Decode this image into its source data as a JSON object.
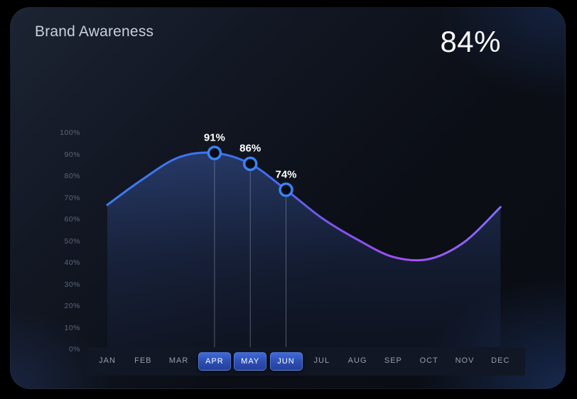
{
  "header": {
    "title": "Brand Awareness",
    "kpi_value": "84%"
  },
  "colors": {
    "line_blue": "#3f7bf4",
    "line_purple": "#a34ff5",
    "line_end_violet": "#7f70f7",
    "marker_ring": "#3b82f6",
    "marker_fill": "#080c14",
    "selected_button_blue": "#2d4db0",
    "area_fill_blue": "#4a74d8",
    "label_white": "#ffffff",
    "axis_gray": "#5c6678",
    "month_gray": "#96a0b0"
  },
  "chart_data": {
    "type": "area",
    "title": "Brand Awareness",
    "xlabel": "",
    "ylabel": "",
    "unit": "%",
    "ylim": [
      0,
      100
    ],
    "grid": false,
    "legend": "none",
    "x": [
      "JAN",
      "FEB",
      "MAR",
      "APR",
      "MAY",
      "JUN",
      "JUL",
      "AUG",
      "SEP",
      "OCT",
      "NOV",
      "DEC"
    ],
    "values": [
      67,
      79,
      89,
      91,
      86,
      74,
      61,
      51,
      43,
      42,
      50,
      66
    ],
    "y_ticks": [
      "100%",
      "90%",
      "80%",
      "70%",
      "60%",
      "50%",
      "40%",
      "30%",
      "20%",
      "10%",
      "0%"
    ],
    "highlighted_points": [
      {
        "month": "APR",
        "value": 91,
        "label": "91%"
      },
      {
        "month": "MAY",
        "value": 86,
        "label": "86%"
      },
      {
        "month": "JUN",
        "value": 74,
        "label": "74%"
      }
    ],
    "months": [
      {
        "label": "JAN",
        "selected": false
      },
      {
        "label": "FEB",
        "selected": false
      },
      {
        "label": "MAR",
        "selected": false
      },
      {
        "label": "APR",
        "selected": true
      },
      {
        "label": "MAY",
        "selected": true
      },
      {
        "label": "JUN",
        "selected": true
      },
      {
        "label": "JUL",
        "selected": false
      },
      {
        "label": "AUG",
        "selected": false
      },
      {
        "label": "SEP",
        "selected": false
      },
      {
        "label": "OCT",
        "selected": false
      },
      {
        "label": "NOV",
        "selected": false
      },
      {
        "label": "DEC",
        "selected": false
      }
    ]
  }
}
